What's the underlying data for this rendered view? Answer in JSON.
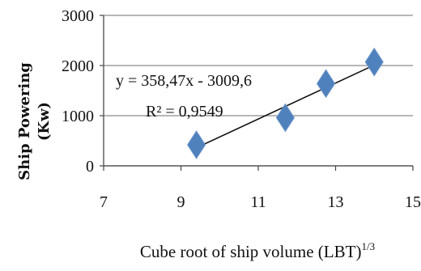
{
  "chart_data": {
    "type": "scatter",
    "title": "",
    "xlabel": "Cube root of ship volume (LBT)",
    "xlabel_superscript": "1/3",
    "ylabel_line1": "Ship Powering",
    "ylabel_line2": "(Kw)",
    "xlim": [
      7,
      15
    ],
    "ylim": [
      0,
      3000
    ],
    "xticks": [
      "7",
      "9",
      "11",
      "13",
      "15"
    ],
    "yticks": [
      "0",
      "1000",
      "2000",
      "3000"
    ],
    "grid": "horizontal",
    "legend": "none",
    "series": [
      {
        "x": [
          9.4,
          11.7,
          12.75,
          14.0
        ],
        "y": [
          420,
          960,
          1640,
          2070
        ],
        "marker": "diamond",
        "color": "#4f81bd"
      }
    ],
    "trendline": {
      "slope": 358.47,
      "intercept": -3009.6,
      "x_range": [
        9.4,
        14.0
      ],
      "color": "#111111"
    },
    "annotations": {
      "equation": "y = 358,47x - 3009,6",
      "r_squared": "R² = 0,9549"
    }
  }
}
